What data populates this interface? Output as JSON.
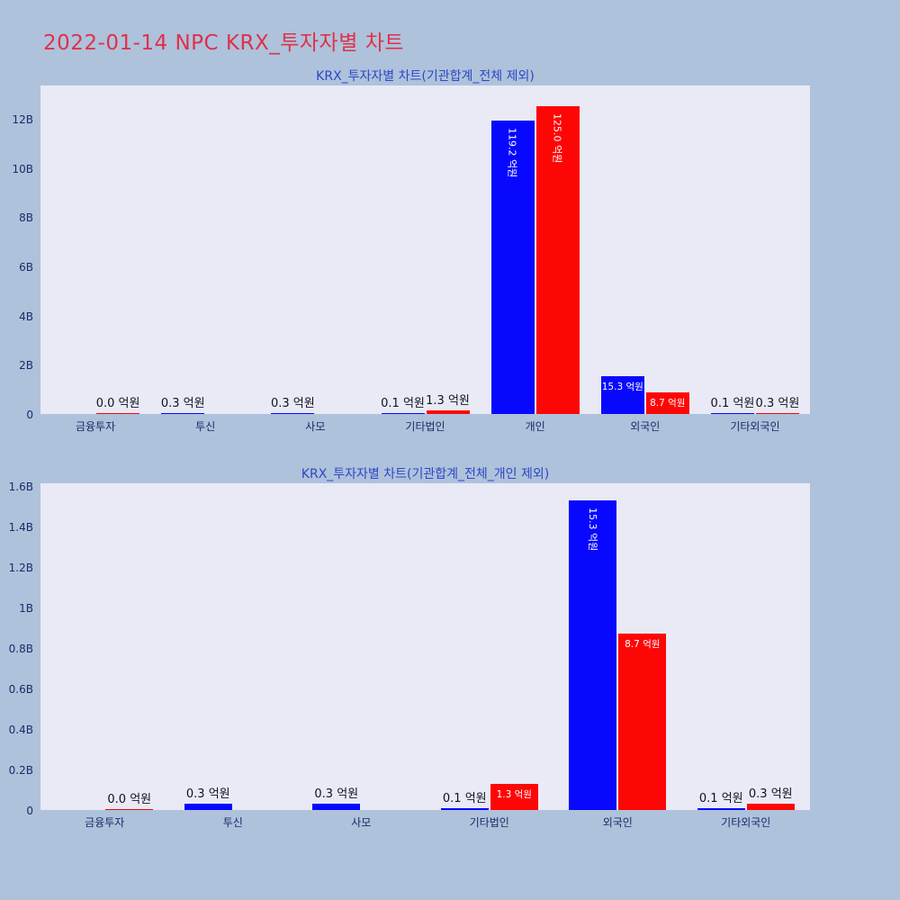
{
  "page_title": "2022-01-14 NPC KRX_투자자별 차트",
  "value_unit": "억원",
  "colors": {
    "figure_bg": "#aec2dc",
    "plot_bg": "#e9eaf6",
    "bar_blue": "#0808ff",
    "bar_red": "#fd0606",
    "page_title": "#e03149",
    "chart_title": "#2e47c4",
    "axis_text": "#1b2c66",
    "bar_label_text": "#10131f",
    "inside_label_text": "#ffffff"
  },
  "chart_data": [
    {
      "type": "bar",
      "title": "KRX_투자자별 차트(기관합계_전체 제외)",
      "xlabel": "",
      "ylabel": "",
      "axis_unit": "B (billions of won); 1 억원 = 0.1B",
      "ylim": [
        0,
        13.35
      ],
      "grid": false,
      "legend": "none",
      "yticks": [
        {
          "label": "0",
          "v": 0
        },
        {
          "label": "2B",
          "v": 2
        },
        {
          "label": "4B",
          "v": 4
        },
        {
          "label": "6B",
          "v": 6
        },
        {
          "label": "8B",
          "v": 8
        },
        {
          "label": "10B",
          "v": 10
        },
        {
          "label": "12B",
          "v": 12
        }
      ],
      "categories": [
        "금융투자",
        "투신",
        "사모",
        "기타법인",
        "개인",
        "외국인",
        "기타외국인"
      ],
      "series": [
        {
          "name": "blue-series",
          "color": "blue",
          "values_eokwon": [
            0.0,
            0.3,
            0.3,
            0.1,
            119.2,
            15.3,
            0.1
          ]
        },
        {
          "name": "red-series",
          "color": "red",
          "values_eokwon": [
            0.0,
            0.0,
            0.0,
            1.3,
            125.0,
            8.7,
            0.3
          ]
        }
      ],
      "groups": [
        {
          "category": "금융투자",
          "bars": [
            {
              "slot": "right",
              "color": "red",
              "value_eok": 0.0,
              "label": "0.0 억원",
              "label_pos": "above",
              "hairline": true
            }
          ]
        },
        {
          "category": "투신",
          "bars": [
            {
              "slot": "left",
              "color": "blue",
              "value_eok": 0.3,
              "label": "0.3 억원",
              "label_pos": "above"
            }
          ]
        },
        {
          "category": "사모",
          "bars": [
            {
              "slot": "left",
              "color": "blue",
              "value_eok": 0.3,
              "label": "0.3 억원",
              "label_pos": "above"
            }
          ]
        },
        {
          "category": "기타법인",
          "bars": [
            {
              "slot": "left",
              "color": "blue",
              "value_eok": 0.1,
              "label": "0.1 억원",
              "label_pos": "above"
            },
            {
              "slot": "right",
              "color": "red",
              "value_eok": 1.3,
              "label": "1.3 억원",
              "label_pos": "above"
            }
          ]
        },
        {
          "category": "개인",
          "bars": [
            {
              "slot": "left",
              "color": "blue",
              "value_eok": 119.2,
              "label": "119.2 억원",
              "label_pos": "inside-vertical"
            },
            {
              "slot": "right",
              "color": "red",
              "value_eok": 125.0,
              "label": "125.0 억원",
              "label_pos": "inside-vertical"
            }
          ]
        },
        {
          "category": "외국인",
          "bars": [
            {
              "slot": "left",
              "color": "blue",
              "value_eok": 15.3,
              "label": "15.3 억원",
              "label_pos": "inside"
            },
            {
              "slot": "right",
              "color": "red",
              "value_eok": 8.7,
              "label": "8.7 억원",
              "label_pos": "inside"
            }
          ]
        },
        {
          "category": "기타외국인",
          "bars": [
            {
              "slot": "left",
              "color": "blue",
              "value_eok": 0.1,
              "label": "0.1 억원",
              "label_pos": "above"
            },
            {
              "slot": "right",
              "color": "red",
              "value_eok": 0.3,
              "label": "0.3 억원",
              "label_pos": "above"
            }
          ]
        }
      ]
    },
    {
      "type": "bar",
      "title": "KRX_투자자별 차트(기관합계_전체_개인 제외)",
      "xlabel": "",
      "ylabel": "",
      "axis_unit": "B (billions of won); 1 억원 = 0.1B",
      "ylim": [
        0,
        1.613
      ],
      "grid": false,
      "legend": "none",
      "yticks": [
        {
          "label": "0",
          "v": 0
        },
        {
          "label": "0.2B",
          "v": 0.2
        },
        {
          "label": "0.4B",
          "v": 0.4
        },
        {
          "label": "0.6B",
          "v": 0.6
        },
        {
          "label": "0.8B",
          "v": 0.8
        },
        {
          "label": "1B",
          "v": 1.0
        },
        {
          "label": "1.2B",
          "v": 1.2
        },
        {
          "label": "1.4B",
          "v": 1.4
        },
        {
          "label": "1.6B",
          "v": 1.6
        }
      ],
      "categories": [
        "금융투자",
        "투신",
        "사모",
        "기타법인",
        "외국인",
        "기타외국인"
      ],
      "series": [
        {
          "name": "blue-series",
          "color": "blue",
          "values_eokwon": [
            0.0,
            0.3,
            0.3,
            0.1,
            15.3,
            0.1
          ]
        },
        {
          "name": "red-series",
          "color": "red",
          "values_eokwon": [
            0.0,
            0.0,
            0.0,
            1.3,
            8.7,
            0.3
          ]
        }
      ],
      "groups": [
        {
          "category": "금융투자",
          "bars": [
            {
              "slot": "right",
              "color": "red",
              "value_eok": 0.0,
              "label": "0.0 억원",
              "label_pos": "above",
              "hairline": true
            }
          ]
        },
        {
          "category": "투신",
          "bars": [
            {
              "slot": "left",
              "color": "blue",
              "value_eok": 0.3,
              "label": "0.3 억원",
              "label_pos": "above"
            }
          ]
        },
        {
          "category": "사모",
          "bars": [
            {
              "slot": "left",
              "color": "blue",
              "value_eok": 0.3,
              "label": "0.3 억원",
              "label_pos": "above"
            }
          ]
        },
        {
          "category": "기타법인",
          "bars": [
            {
              "slot": "left",
              "color": "blue",
              "value_eok": 0.1,
              "label": "0.1 억원",
              "label_pos": "above"
            },
            {
              "slot": "right",
              "color": "red",
              "value_eok": 1.3,
              "label": "1.3 억원",
              "label_pos": "inside"
            }
          ]
        },
        {
          "category": "외국인",
          "bars": [
            {
              "slot": "left",
              "color": "blue",
              "value_eok": 15.3,
              "label": "15.3 억원",
              "label_pos": "inside-vertical"
            },
            {
              "slot": "right",
              "color": "red",
              "value_eok": 8.7,
              "label": "8.7 억원",
              "label_pos": "inside"
            }
          ]
        },
        {
          "category": "기타외국인",
          "bars": [
            {
              "slot": "left",
              "color": "blue",
              "value_eok": 0.1,
              "label": "0.1 억원",
              "label_pos": "above"
            },
            {
              "slot": "right",
              "color": "red",
              "value_eok": 0.3,
              "label": "0.3 억원",
              "label_pos": "above"
            }
          ]
        }
      ]
    }
  ]
}
